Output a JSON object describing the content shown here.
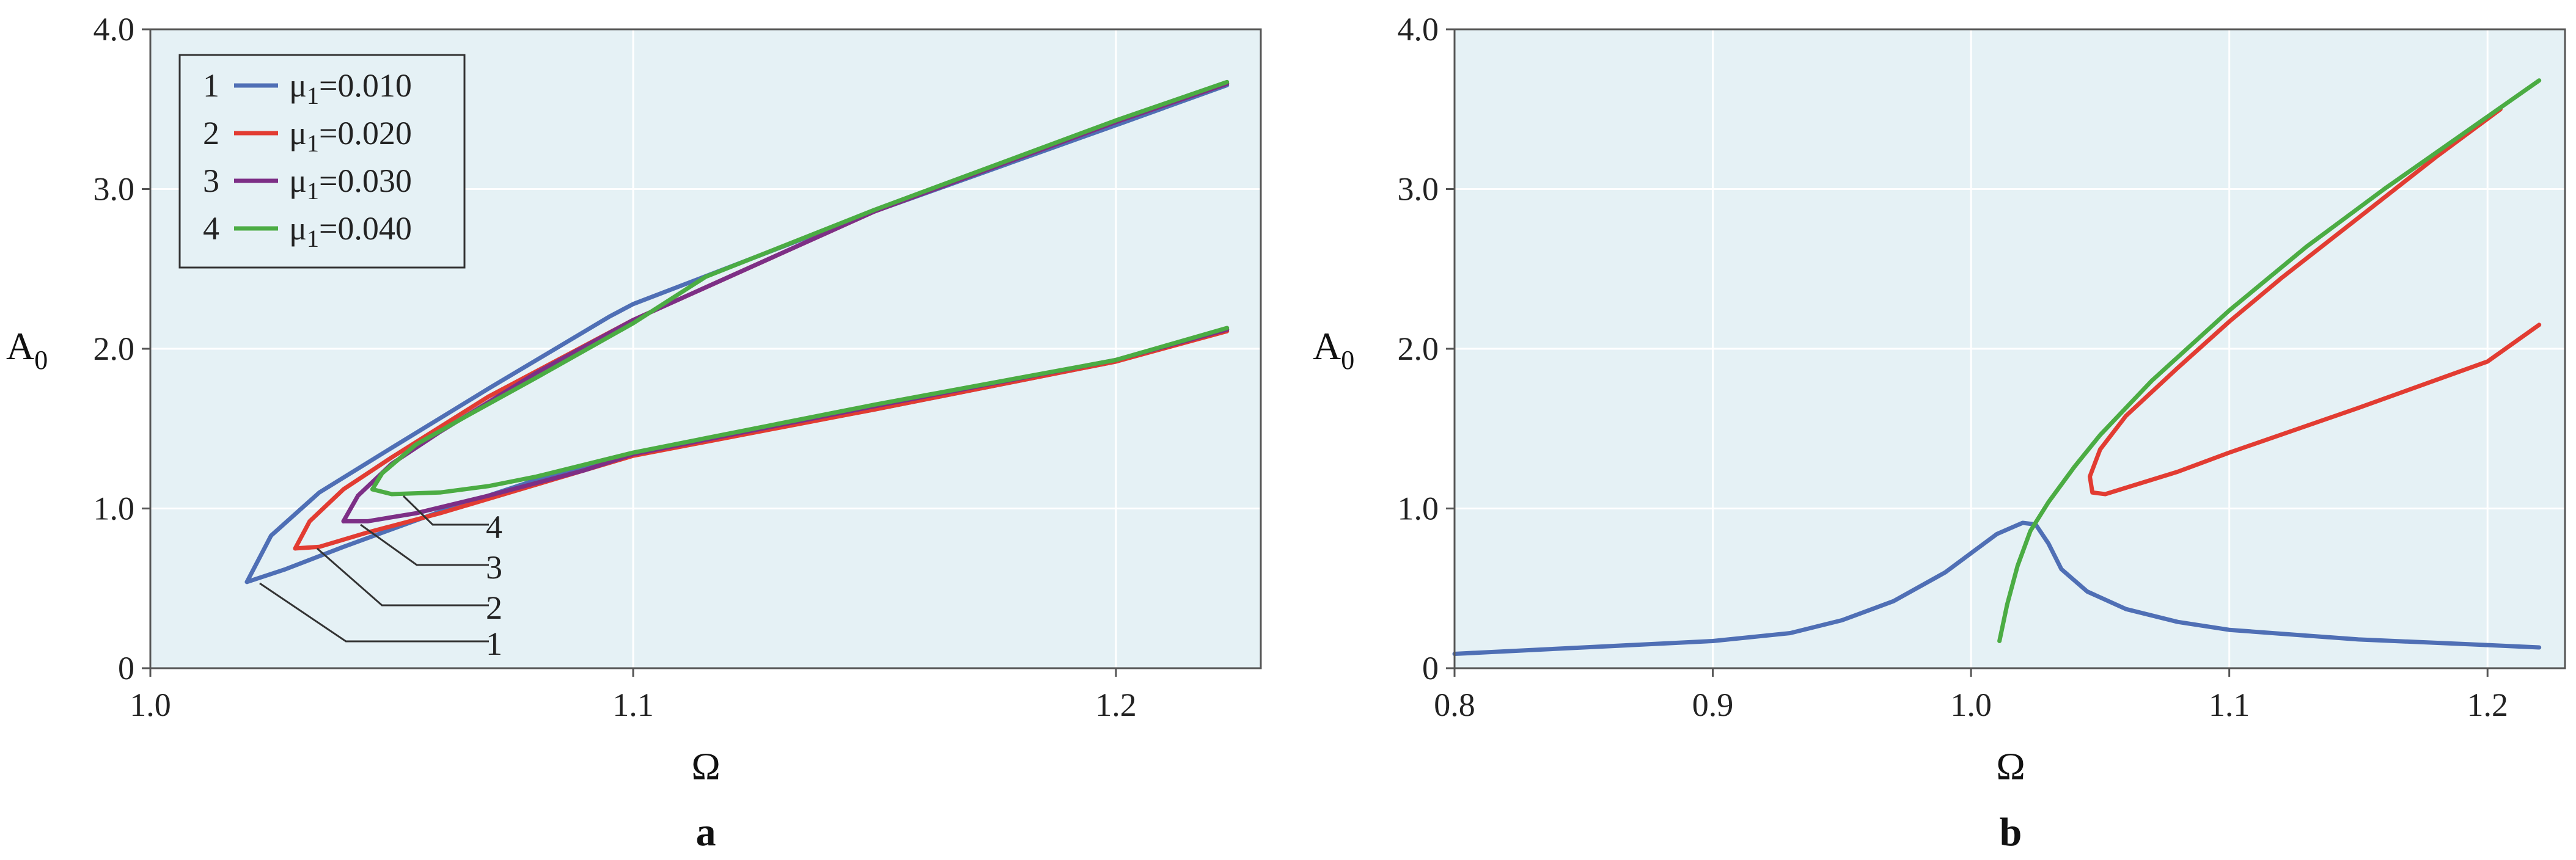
{
  "chart_data": [
    {
      "panel": "a",
      "type": "line",
      "title": "",
      "xlabel": "Ω",
      "ylabel": "A",
      "ylabel_sub": "0",
      "xlim": [
        1.0,
        1.23
      ],
      "ylim": [
        0,
        4.0
      ],
      "xticks": [
        "1.0",
        "1.1",
        "1.2"
      ],
      "xtick_values": [
        1.0,
        1.1,
        1.2
      ],
      "yticks": [
        "0",
        "1.0",
        "2.0",
        "3.0",
        "4.0"
      ],
      "ytick_values": [
        0,
        1,
        2,
        3,
        4
      ],
      "grid": true,
      "legend_position": "top-left",
      "legend": [
        {
          "num": "1",
          "label": "μ",
          "sub": "1",
          "value": "=0.010",
          "color": "#4f6fb5"
        },
        {
          "num": "2",
          "label": "μ",
          "sub": "1",
          "value": "=0.020",
          "color": "#e23c32"
        },
        {
          "num": "3",
          "label": "μ",
          "sub": "1",
          "value": "=0.030",
          "color": "#7d2f86"
        },
        {
          "num": "4",
          "label": "μ",
          "sub": "1",
          "value": "=0.040",
          "color": "#4bac43"
        }
      ],
      "callouts": [
        "1",
        "2",
        "3",
        "4"
      ],
      "series": [
        {
          "name": "μ1=0.010",
          "color": "#4f6fb5",
          "points": [
            [
              1.02,
              0.54
            ],
            [
              1.025,
              0.83
            ],
            [
              1.035,
              1.1
            ],
            [
              1.05,
              1.38
            ],
            [
              1.07,
              1.75
            ],
            [
              1.095,
              2.2
            ],
            [
              1.1,
              2.28
            ],
            [
              1.15,
              2.86
            ],
            [
              1.2,
              3.4
            ],
            [
              1.223,
              3.65
            ],
            null,
            [
              1.02,
              0.54
            ],
            [
              1.028,
              0.62
            ],
            [
              1.04,
              0.76
            ],
            [
              1.06,
              0.98
            ],
            [
              1.08,
              1.18
            ],
            [
              1.1,
              1.34
            ],
            [
              1.15,
              1.62
            ],
            [
              1.2,
              1.92
            ],
            [
              1.223,
              2.12
            ]
          ]
        },
        {
          "name": "μ1=0.020",
          "color": "#e23c32",
          "points": [
            [
              1.03,
              0.75
            ],
            [
              1.033,
              0.92
            ],
            [
              1.04,
              1.12
            ],
            [
              1.05,
              1.32
            ],
            [
              1.07,
              1.7
            ],
            [
              1.1,
              2.18
            ],
            [
              1.15,
              2.86
            ],
            [
              1.2,
              3.42
            ],
            [
              1.223,
              3.66
            ],
            null,
            [
              1.03,
              0.75
            ],
            [
              1.035,
              0.76
            ],
            [
              1.045,
              0.85
            ],
            [
              1.06,
              0.97
            ],
            [
              1.08,
              1.15
            ],
            [
              1.1,
              1.33
            ],
            [
              1.15,
              1.62
            ],
            [
              1.2,
              1.92
            ],
            [
              1.223,
              2.11
            ]
          ]
        },
        {
          "name": "μ1=0.030",
          "color": "#7d2f86",
          "points": [
            [
              1.04,
              0.92
            ],
            [
              1.043,
              1.08
            ],
            [
              1.05,
              1.28
            ],
            [
              1.06,
              1.48
            ],
            [
              1.08,
              1.85
            ],
            [
              1.1,
              2.18
            ],
            [
              1.15,
              2.86
            ],
            [
              1.2,
              3.42
            ],
            [
              1.223,
              3.66
            ],
            null,
            [
              1.04,
              0.92
            ],
            [
              1.045,
              0.92
            ],
            [
              1.055,
              0.97
            ],
            [
              1.07,
              1.08
            ],
            [
              1.09,
              1.24
            ],
            [
              1.1,
              1.34
            ],
            [
              1.15,
              1.64
            ],
            [
              1.2,
              1.93
            ],
            [
              1.223,
              2.12
            ]
          ]
        },
        {
          "name": "μ1=0.040",
          "color": "#4bac43",
          "points": [
            [
              1.046,
              1.12
            ],
            [
              1.048,
              1.22
            ],
            [
              1.055,
              1.4
            ],
            [
              1.065,
              1.57
            ],
            [
              1.08,
              1.82
            ],
            [
              1.1,
              2.16
            ],
            [
              1.115,
              2.45
            ],
            [
              1.15,
              2.87
            ],
            [
              1.2,
              3.43
            ],
            [
              1.223,
              3.67
            ],
            null,
            [
              1.046,
              1.12
            ],
            [
              1.05,
              1.09
            ],
            [
              1.06,
              1.1
            ],
            [
              1.07,
              1.14
            ],
            [
              1.08,
              1.2
            ],
            [
              1.1,
              1.35
            ],
            [
              1.15,
              1.65
            ],
            [
              1.2,
              1.93
            ],
            [
              1.223,
              2.13
            ]
          ]
        }
      ]
    },
    {
      "panel": "b",
      "type": "line",
      "title": "",
      "xlabel": "Ω",
      "ylabel": "A",
      "ylabel_sub": "0",
      "xlim": [
        0.8,
        1.23
      ],
      "ylim": [
        0,
        4.0
      ],
      "xticks": [
        "0.8",
        "0.9",
        "1.0",
        "1.1",
        "1.2"
      ],
      "xtick_values": [
        0.8,
        0.9,
        1.0,
        1.1,
        1.2
      ],
      "yticks": [
        "0",
        "1.0",
        "2.0",
        "3.0",
        "4.0"
      ],
      "ytick_values": [
        0,
        1,
        2,
        3,
        4
      ],
      "grid": true,
      "series": [
        {
          "color": "#4f6fb5",
          "points": [
            [
              0.8,
              0.09
            ],
            [
              0.85,
              0.13
            ],
            [
              0.9,
              0.17
            ],
            [
              0.93,
              0.22
            ],
            [
              0.95,
              0.3
            ],
            [
              0.97,
              0.42
            ],
            [
              0.99,
              0.6
            ],
            [
              1.0,
              0.72
            ],
            [
              1.01,
              0.84
            ],
            [
              1.02,
              0.91
            ],
            [
              1.025,
              0.9
            ],
            [
              1.03,
              0.78
            ],
            [
              1.035,
              0.62
            ],
            [
              1.045,
              0.48
            ],
            [
              1.06,
              0.37
            ],
            [
              1.08,
              0.29
            ],
            [
              1.1,
              0.24
            ],
            [
              1.15,
              0.18
            ],
            [
              1.2,
              0.145
            ],
            [
              1.22,
              0.13
            ]
          ]
        },
        {
          "color": "#e23c32",
          "points": [
            [
              1.205,
              3.5
            ],
            [
              1.18,
              3.2
            ],
            [
              1.15,
              2.82
            ],
            [
              1.12,
              2.44
            ],
            [
              1.1,
              2.17
            ],
            [
              1.08,
              1.88
            ],
            [
              1.06,
              1.58
            ],
            [
              1.05,
              1.37
            ],
            [
              1.046,
              1.2
            ],
            [
              1.047,
              1.1
            ],
            [
              1.052,
              1.09
            ],
            [
              1.06,
              1.13
            ],
            [
              1.08,
              1.23
            ],
            [
              1.1,
              1.35
            ],
            [
              1.15,
              1.63
            ],
            [
              1.2,
              1.92
            ],
            [
              1.22,
              2.15
            ]
          ]
        },
        {
          "color": "#4bac43",
          "points": [
            [
              1.011,
              0.17
            ],
            [
              1.014,
              0.4
            ],
            [
              1.018,
              0.64
            ],
            [
              1.023,
              0.86
            ],
            [
              1.03,
              1.04
            ],
            [
              1.04,
              1.26
            ],
            [
              1.05,
              1.46
            ],
            [
              1.07,
              1.8
            ],
            [
              1.1,
              2.24
            ],
            [
              1.13,
              2.64
            ],
            [
              1.16,
              3.0
            ],
            [
              1.19,
              3.34
            ],
            [
              1.22,
              3.68
            ]
          ]
        }
      ]
    }
  ]
}
